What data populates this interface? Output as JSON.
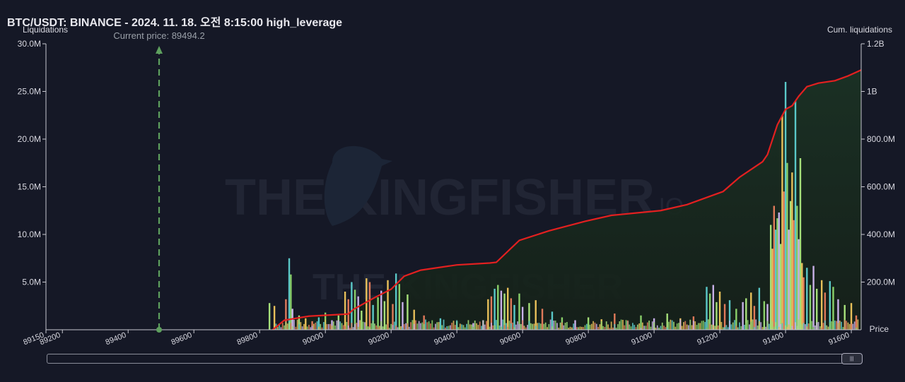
{
  "header": {
    "title": "BTC/USDT: BINANCE - 2024. 11. 18. 오전 8:15:00 high_leverage"
  },
  "watermark": {
    "brand": "THE KINGFISHER",
    "suffix": ".IO"
  },
  "scrollbar": {
    "grip_icon": "grip-icon"
  },
  "colors": {
    "background": "#151826",
    "cum_line": "#e32020",
    "area_fill": "#17281f",
    "price_marker": "#5ea05e",
    "bars": [
      "#a6e07a",
      "#e8c05a",
      "#e07a5a",
      "#5ac8c8",
      "#8ad06a",
      "#c8b0e8"
    ]
  },
  "chart_data": {
    "type": "bar",
    "title": "BTC/USDT: BINANCE - 2024. 11. 18. 오전 8:15:00 high_leverage",
    "xlabel": "Price",
    "ylabel": "Liquidations",
    "y2label": "Cum. liquidations",
    "annotation": "Current price: 89494.2",
    "current_price": 89494.2,
    "xlim": [
      89150,
      91630
    ],
    "x_ticks": [
      89150,
      89200,
      89400,
      89600,
      89800,
      90000,
      90200,
      90400,
      90600,
      90800,
      91000,
      91200,
      91400,
      91600
    ],
    "ylim": [
      0,
      30000000
    ],
    "y_ticks": [
      {
        "value": 5000000,
        "label": "5.0M"
      },
      {
        "value": 10000000,
        "label": "10.0M"
      },
      {
        "value": 15000000,
        "label": "15.0M"
      },
      {
        "value": 20000000,
        "label": "20.0M"
      },
      {
        "value": 25000000,
        "label": "25.0M"
      },
      {
        "value": 30000000,
        "label": "30.0M"
      }
    ],
    "y2lim": [
      0,
      1200000000
    ],
    "y2_ticks": [
      {
        "value": 200000000,
        "label": "200.0M"
      },
      {
        "value": 400000000,
        "label": "400.0M"
      },
      {
        "value": 600000000,
        "label": "600.0M"
      },
      {
        "value": 800000000,
        "label": "800.0M"
      },
      {
        "value": 1000000000,
        "label": "1B"
      },
      {
        "value": 1200000000,
        "label": "1.2B"
      }
    ],
    "grid": false,
    "bars": [
      {
        "x": 89830,
        "v": 2800000
      },
      {
        "x": 89845,
        "v": 2500000
      },
      {
        "x": 89880,
        "v": 3200000
      },
      {
        "x": 89890,
        "v": 7500000
      },
      {
        "x": 89895,
        "v": 5800000
      },
      {
        "x": 89900,
        "v": 2200000
      },
      {
        "x": 89920,
        "v": 1500000
      },
      {
        "x": 89940,
        "v": 1200000
      },
      {
        "x": 89960,
        "v": 900000
      },
      {
        "x": 89980,
        "v": 1300000
      },
      {
        "x": 90000,
        "v": 1800000
      },
      {
        "x": 90020,
        "v": 1000000
      },
      {
        "x": 90040,
        "v": 1500000
      },
      {
        "x": 90060,
        "v": 4000000
      },
      {
        "x": 90070,
        "v": 3200000
      },
      {
        "x": 90080,
        "v": 5000000
      },
      {
        "x": 90090,
        "v": 4200000
      },
      {
        "x": 90100,
        "v": 3500000
      },
      {
        "x": 90110,
        "v": 2000000
      },
      {
        "x": 90125,
        "v": 5400000
      },
      {
        "x": 90135,
        "v": 5000000
      },
      {
        "x": 90145,
        "v": 2600000
      },
      {
        "x": 90160,
        "v": 3400000
      },
      {
        "x": 90170,
        "v": 4100000
      },
      {
        "x": 90180,
        "v": 3000000
      },
      {
        "x": 90190,
        "v": 5200000
      },
      {
        "x": 90205,
        "v": 2700000
      },
      {
        "x": 90215,
        "v": 5900000
      },
      {
        "x": 90225,
        "v": 4800000
      },
      {
        "x": 90235,
        "v": 2900000
      },
      {
        "x": 90250,
        "v": 3700000
      },
      {
        "x": 90270,
        "v": 2100000
      },
      {
        "x": 90300,
        "v": 1500000
      },
      {
        "x": 90350,
        "v": 1200000
      },
      {
        "x": 90400,
        "v": 900000
      },
      {
        "x": 90450,
        "v": 700000
      },
      {
        "x": 90480,
        "v": 1000000
      },
      {
        "x": 90495,
        "v": 3200000
      },
      {
        "x": 90505,
        "v": 3500000
      },
      {
        "x": 90515,
        "v": 4300000
      },
      {
        "x": 90525,
        "v": 4700000
      },
      {
        "x": 90535,
        "v": 4100000
      },
      {
        "x": 90545,
        "v": 3800000
      },
      {
        "x": 90555,
        "v": 4400000
      },
      {
        "x": 90565,
        "v": 3300000
      },
      {
        "x": 90575,
        "v": 2600000
      },
      {
        "x": 90590,
        "v": 3800000
      },
      {
        "x": 90600,
        "v": 2400000
      },
      {
        "x": 90620,
        "v": 2800000
      },
      {
        "x": 90640,
        "v": 3100000
      },
      {
        "x": 90660,
        "v": 2200000
      },
      {
        "x": 90690,
        "v": 1900000
      },
      {
        "x": 90720,
        "v": 1300000
      },
      {
        "x": 90760,
        "v": 1000000
      },
      {
        "x": 90800,
        "v": 1300000
      },
      {
        "x": 90840,
        "v": 1100000
      },
      {
        "x": 90880,
        "v": 1700000
      },
      {
        "x": 90920,
        "v": 900000
      },
      {
        "x": 90960,
        "v": 1500000
      },
      {
        "x": 91000,
        "v": 1200000
      },
      {
        "x": 91040,
        "v": 1700000
      },
      {
        "x": 91080,
        "v": 1200000
      },
      {
        "x": 91120,
        "v": 1400000
      },
      {
        "x": 91160,
        "v": 4500000
      },
      {
        "x": 91170,
        "v": 3800000
      },
      {
        "x": 91180,
        "v": 4700000
      },
      {
        "x": 91190,
        "v": 2900000
      },
      {
        "x": 91200,
        "v": 4000000
      },
      {
        "x": 91215,
        "v": 2700000
      },
      {
        "x": 91230,
        "v": 3100000
      },
      {
        "x": 91250,
        "v": 2200000
      },
      {
        "x": 91270,
        "v": 2900000
      },
      {
        "x": 91280,
        "v": 3300000
      },
      {
        "x": 91295,
        "v": 3900000
      },
      {
        "x": 91305,
        "v": 2500000
      },
      {
        "x": 91320,
        "v": 4400000
      },
      {
        "x": 91335,
        "v": 3000000
      },
      {
        "x": 91345,
        "v": 2700000
      },
      {
        "x": 91355,
        "v": 11000000
      },
      {
        "x": 91360,
        "v": 8500000
      },
      {
        "x": 91365,
        "v": 13000000
      },
      {
        "x": 91370,
        "v": 10500000
      },
      {
        "x": 91375,
        "v": 11700000
      },
      {
        "x": 91380,
        "v": 12300000
      },
      {
        "x": 91385,
        "v": 9000000
      },
      {
        "x": 91390,
        "v": 22500000
      },
      {
        "x": 91395,
        "v": 14500000
      },
      {
        "x": 91400,
        "v": 26000000
      },
      {
        "x": 91405,
        "v": 17500000
      },
      {
        "x": 91410,
        "v": 10500000
      },
      {
        "x": 91415,
        "v": 13500000
      },
      {
        "x": 91420,
        "v": 16500000
      },
      {
        "x": 91425,
        "v": 11500000
      },
      {
        "x": 91430,
        "v": 24000000
      },
      {
        "x": 91435,
        "v": 13000000
      },
      {
        "x": 91440,
        "v": 9500000
      },
      {
        "x": 91445,
        "v": 18000000
      },
      {
        "x": 91450,
        "v": 7000000
      },
      {
        "x": 91455,
        "v": 5500000
      },
      {
        "x": 91465,
        "v": 6500000
      },
      {
        "x": 91475,
        "v": 4700000
      },
      {
        "x": 91485,
        "v": 6700000
      },
      {
        "x": 91495,
        "v": 4300000
      },
      {
        "x": 91510,
        "v": 5200000
      },
      {
        "x": 91520,
        "v": 3900000
      },
      {
        "x": 91535,
        "v": 5100000
      },
      {
        "x": 91545,
        "v": 4500000
      },
      {
        "x": 91560,
        "v": 3200000
      },
      {
        "x": 91580,
        "v": 2600000
      },
      {
        "x": 91600,
        "v": 2800000
      },
      {
        "x": 91615,
        "v": 1500000
      }
    ],
    "cumulative": {
      "name": "Cum. liquidations",
      "points": [
        [
          89840,
          0
        ],
        [
          89875,
          40000000
        ],
        [
          89950,
          57000000
        ],
        [
          90030,
          63000000
        ],
        [
          90070,
          66000000
        ],
        [
          90085,
          85000000
        ],
        [
          90150,
          135000000
        ],
        [
          90200,
          170000000
        ],
        [
          90240,
          225000000
        ],
        [
          90290,
          250000000
        ],
        [
          90400,
          272000000
        ],
        [
          90500,
          280000000
        ],
        [
          90520,
          283000000
        ],
        [
          90590,
          375000000
        ],
        [
          90680,
          415000000
        ],
        [
          90790,
          455000000
        ],
        [
          90870,
          480000000
        ],
        [
          91020,
          500000000
        ],
        [
          91100,
          525000000
        ],
        [
          91210,
          580000000
        ],
        [
          91260,
          640000000
        ],
        [
          91330,
          705000000
        ],
        [
          91345,
          735000000
        ],
        [
          91375,
          860000000
        ],
        [
          91400,
          925000000
        ],
        [
          91420,
          940000000
        ],
        [
          91440,
          980000000
        ],
        [
          91465,
          1020000000
        ],
        [
          91500,
          1035000000
        ],
        [
          91550,
          1045000000
        ],
        [
          91590,
          1065000000
        ],
        [
          91630,
          1090000000
        ]
      ]
    }
  }
}
